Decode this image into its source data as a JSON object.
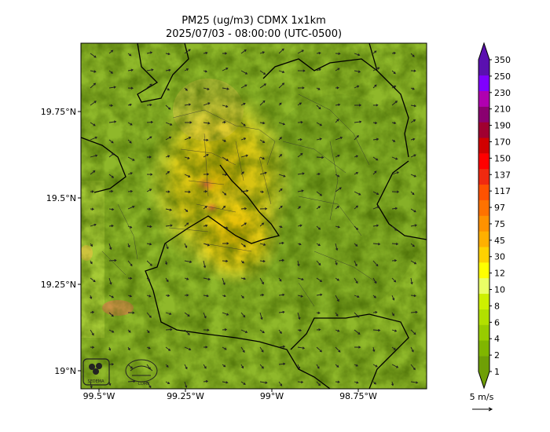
{
  "title_line1": "PM25 (ug/m3) CDMX 1x1km",
  "title_line2": "2025/07/03 - 08:00:00 (UTC-0500)",
  "x_ticks": [
    "99.5°W",
    "99.25°W",
    "99°W",
    "98.75°W"
  ],
  "y_ticks": [
    "19.75°N",
    "19.5°N",
    "19.25°N",
    "19°N"
  ],
  "colorbar": {
    "labels": [
      "1",
      "2",
      "4",
      "6",
      "8",
      "10",
      "12",
      "30",
      "45",
      "75",
      "97",
      "117",
      "137",
      "150",
      "170",
      "190",
      "210",
      "230",
      "250",
      "350"
    ],
    "colors": [
      "#6f9f06",
      "#80b600",
      "#98cc00",
      "#b2e000",
      "#cdf000",
      "#eaff66",
      "#ffff00",
      "#ffd200",
      "#ffb000",
      "#ff9200",
      "#ff7200",
      "#ff5200",
      "#f02a10",
      "#ff0000",
      "#d00000",
      "#a00030",
      "#8a0070",
      "#b000b0",
      "#8000ff",
      "#5a10b0"
    ]
  },
  "wind_reference": "5 m/s",
  "logos": [
    "SEDEMA",
    "CDMX"
  ]
}
